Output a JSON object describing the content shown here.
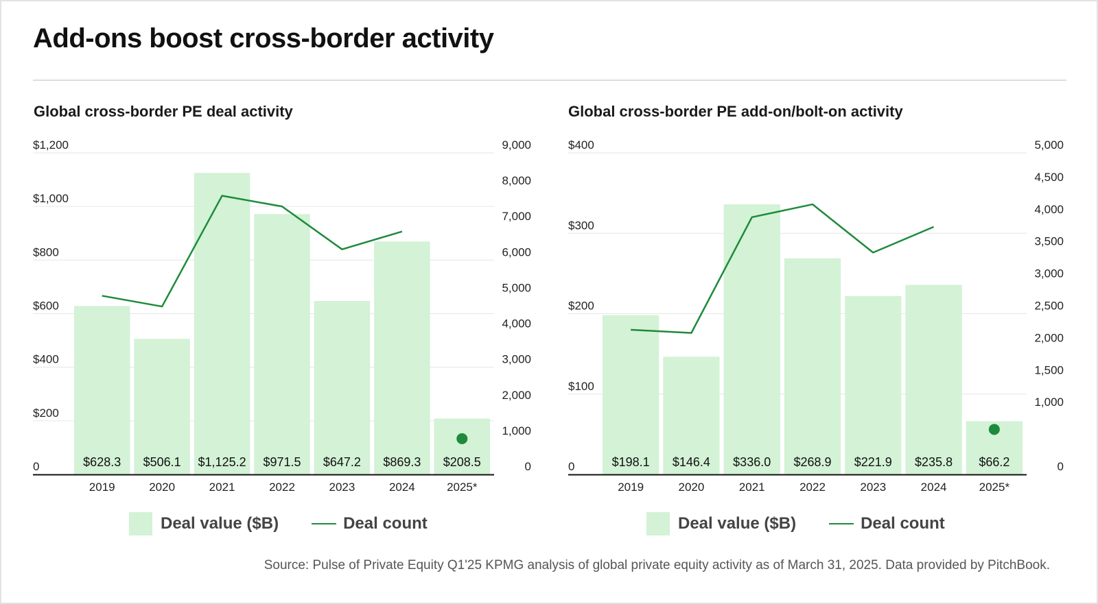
{
  "title": "Add-ons boost cross-border activity",
  "source": "Source: Pulse of Private Equity Q1'25 KPMG analysis of global private equity activity as of March 31, 2025. Data provided by PitchBook.",
  "colors": {
    "bar": "#d3f2d6",
    "line": "#1e8a3b",
    "grid": "#e6e6e6",
    "axis": "#111111"
  },
  "chart_data": [
    {
      "type": "bar",
      "title": "Global cross-border PE deal activity",
      "categories": [
        "2019",
        "2020",
        "2021",
        "2022",
        "2023",
        "2024",
        "2025*"
      ],
      "series": [
        {
          "name": "Deal value ($B)",
          "axis": "left",
          "values": [
            628.3,
            506.1,
            1125.2,
            971.5,
            647.2,
            869.3,
            208.5
          ],
          "labels": [
            "$628.3",
            "$506.1",
            "$1,125.2",
            "$971.5",
            "$647.2",
            "$869.3",
            "$208.5"
          ]
        },
        {
          "name": "Deal count",
          "type": "line",
          "axis": "right",
          "values": [
            5000,
            4700,
            7800,
            7500,
            6300,
            6800,
            1000
          ]
        }
      ],
      "left_axis": {
        "ylim": [
          0,
          1200
        ],
        "ticks": [
          0,
          200,
          400,
          600,
          800,
          1000,
          1200
        ],
        "tick_labels": [
          "0",
          "$200",
          "$400",
          "$600",
          "$800",
          "$1,000",
          "$1,200"
        ]
      },
      "right_axis": {
        "ylim": [
          0,
          9000
        ],
        "ticks": [
          0,
          1000,
          2000,
          3000,
          4000,
          5000,
          6000,
          7000,
          8000,
          9000
        ],
        "tick_labels": [
          "0",
          "1,000",
          "2,000",
          "3,000",
          "4,000",
          "5,000",
          "6,000",
          "7,000",
          "8,000",
          "9,000"
        ]
      },
      "legend": {
        "value_label": "Deal value ($B)",
        "count_label": "Deal count"
      },
      "legend_position": "bottom",
      "grid": true
    },
    {
      "type": "bar",
      "title": "Global cross-border PE add-on/bolt-on activity",
      "categories": [
        "2019",
        "2020",
        "2021",
        "2022",
        "2023",
        "2024",
        "2025*"
      ],
      "series": [
        {
          "name": "Deal value ($B)",
          "axis": "left",
          "values": [
            198.1,
            146.4,
            336.0,
            268.9,
            221.9,
            235.8,
            66.2
          ],
          "labels": [
            "$198.1",
            "$146.4",
            "$336.0",
            "$268.9",
            "$221.9",
            "$235.8",
            "$66.2"
          ]
        },
        {
          "name": "Deal count",
          "type": "line",
          "axis": "right",
          "values": [
            2250,
            2200,
            4000,
            4200,
            3450,
            3850,
            700
          ]
        }
      ],
      "left_axis": {
        "ylim": [
          0,
          400
        ],
        "ticks": [
          0,
          100,
          200,
          300,
          400
        ],
        "tick_labels": [
          "0",
          "$100",
          "$200",
          "$300",
          "$400"
        ]
      },
      "right_axis": {
        "ylim": [
          0,
          5000
        ],
        "ticks": [
          0,
          1000,
          1500,
          2000,
          2500,
          3000,
          3500,
          4000,
          4500,
          5000
        ],
        "tick_labels": [
          "0",
          "1,000",
          "1,500",
          "2,000",
          "2,500",
          "3,000",
          "3,500",
          "4,000",
          "4,500",
          "5,000"
        ]
      },
      "legend": {
        "value_label": "Deal value ($B)",
        "count_label": "Deal count"
      },
      "legend_position": "bottom",
      "grid": true
    }
  ]
}
